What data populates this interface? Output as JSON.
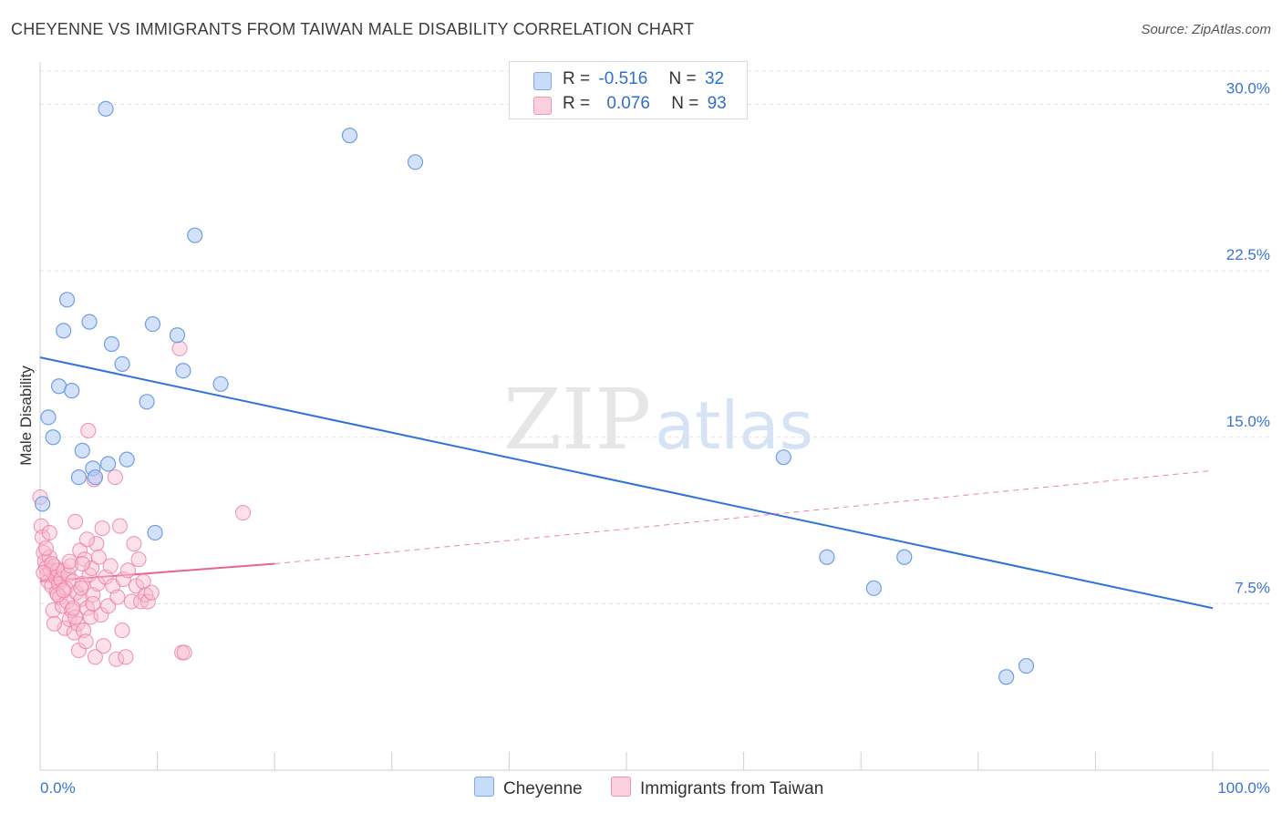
{
  "title": "CHEYENNE VS IMMIGRANTS FROM TAIWAN MALE DISABILITY CORRELATION CHART",
  "source": "Source: ZipAtlas.com",
  "watermark": {
    "zip": "ZIP",
    "atlas": "atlas"
  },
  "legend": {
    "rows": [
      {
        "r_label": "R =",
        "r_value": "-0.516",
        "n_label": "N =",
        "n_value": "32"
      },
      {
        "r_label": "R =",
        "r_value": "0.076",
        "n_label": "N =",
        "n_value": "93"
      }
    ]
  },
  "bottom_legend": {
    "cheyenne": "Cheyenne",
    "taiwan": "Immigrants from Taiwan"
  },
  "colors": {
    "blue_fill": "#aecbf5",
    "blue_stroke": "#6f9fe0",
    "blue_line": "#2f73d6",
    "pink_fill": "#f8bdd0",
    "pink_stroke": "#ec7fa3",
    "pink_line": "#e8658f",
    "axis_label": "#3a74d4",
    "grid": "#e2e2e2"
  },
  "chart_data": {
    "type": "scatter",
    "title": "CHEYENNE VS IMMIGRANTS FROM TAIWAN MALE DISABILITY CORRELATION CHART",
    "xlabel": "",
    "ylabel": "Male Disability",
    "xlim": [
      0,
      100
    ],
    "ylim": [
      0,
      31.5
    ],
    "x_tick_labels": [
      "0.0%",
      "100.0%"
    ],
    "y_ticks": [
      7.5,
      15.0,
      22.5,
      30.0
    ],
    "y_tick_labels": [
      "7.5%",
      "15.0%",
      "22.5%",
      "30.0%"
    ],
    "series": [
      {
        "name": "Cheyenne",
        "r": -0.516,
        "n": 32,
        "points": [
          [
            5.6,
            29.8
          ],
          [
            26.4,
            28.6
          ],
          [
            32.0,
            27.4
          ],
          [
            13.2,
            24.1
          ],
          [
            2.3,
            21.2
          ],
          [
            4.2,
            20.2
          ],
          [
            9.6,
            20.1
          ],
          [
            2.0,
            19.8
          ],
          [
            11.7,
            19.6
          ],
          [
            6.1,
            19.2
          ],
          [
            7.0,
            18.3
          ],
          [
            12.2,
            18.0
          ],
          [
            15.4,
            17.4
          ],
          [
            1.6,
            17.3
          ],
          [
            2.7,
            17.1
          ],
          [
            9.1,
            16.6
          ],
          [
            0.7,
            15.9
          ],
          [
            1.1,
            15.0
          ],
          [
            3.6,
            14.4
          ],
          [
            7.4,
            14.0
          ],
          [
            5.8,
            13.8
          ],
          [
            4.5,
            13.6
          ],
          [
            3.3,
            13.2
          ],
          [
            4.7,
            13.2
          ],
          [
            0.2,
            12.0
          ],
          [
            9.8,
            10.7
          ],
          [
            63.4,
            14.1
          ],
          [
            67.1,
            9.6
          ],
          [
            73.7,
            9.6
          ],
          [
            71.1,
            8.2
          ],
          [
            84.1,
            4.7
          ],
          [
            82.4,
            4.2
          ]
        ],
        "regression": {
          "x": [
            0,
            100
          ],
          "y": [
            18.6,
            7.3
          ]
        }
      },
      {
        "name": "Immigrants from Taiwan",
        "r": 0.076,
        "n": 93,
        "points": [
          [
            0.0,
            12.3
          ],
          [
            0.1,
            11.0
          ],
          [
            0.2,
            10.5
          ],
          [
            0.3,
            9.8
          ],
          [
            0.4,
            9.4
          ],
          [
            0.5,
            9.1
          ],
          [
            0.6,
            8.8
          ],
          [
            0.7,
            8.5
          ],
          [
            0.8,
            9.6
          ],
          [
            0.9,
            9.0
          ],
          [
            1.0,
            8.3
          ],
          [
            1.1,
            7.2
          ],
          [
            1.2,
            9.2
          ],
          [
            1.3,
            8.7
          ],
          [
            1.4,
            8.0
          ],
          [
            1.5,
            9.0
          ],
          [
            1.6,
            8.4
          ],
          [
            1.7,
            7.8
          ],
          [
            1.8,
            8.6
          ],
          [
            1.9,
            7.4
          ],
          [
            2.0,
            9.0
          ],
          [
            2.1,
            6.4
          ],
          [
            2.2,
            8.2
          ],
          [
            2.3,
            7.6
          ],
          [
            2.4,
            8.8
          ],
          [
            2.5,
            6.8
          ],
          [
            2.6,
            9.2
          ],
          [
            2.7,
            7.2
          ],
          [
            2.8,
            8.5
          ],
          [
            2.9,
            6.2
          ],
          [
            3.0,
            11.2
          ],
          [
            3.1,
            8.0
          ],
          [
            3.2,
            6.6
          ],
          [
            3.3,
            5.4
          ],
          [
            3.4,
            9.9
          ],
          [
            3.5,
            7.7
          ],
          [
            3.6,
            8.4
          ],
          [
            3.7,
            6.3
          ],
          [
            3.8,
            9.5
          ],
          [
            3.9,
            5.8
          ],
          [
            4.0,
            7.3
          ],
          [
            4.1,
            15.3
          ],
          [
            4.2,
            8.8
          ],
          [
            4.3,
            6.9
          ],
          [
            4.4,
            9.1
          ],
          [
            4.5,
            7.9
          ],
          [
            4.6,
            13.1
          ],
          [
            4.7,
            5.1
          ],
          [
            4.8,
            10.2
          ],
          [
            4.9,
            8.4
          ],
          [
            5.0,
            9.6
          ],
          [
            5.2,
            7.0
          ],
          [
            5.3,
            10.9
          ],
          [
            5.4,
            5.6
          ],
          [
            5.6,
            8.7
          ],
          [
            5.8,
            7.4
          ],
          [
            6.0,
            9.2
          ],
          [
            6.2,
            8.3
          ],
          [
            6.4,
            13.2
          ],
          [
            6.5,
            5.0
          ],
          [
            6.6,
            7.8
          ],
          [
            6.8,
            11.0
          ],
          [
            7.0,
            6.3
          ],
          [
            7.1,
            8.6
          ],
          [
            7.3,
            5.1
          ],
          [
            7.5,
            9.0
          ],
          [
            7.8,
            7.6
          ],
          [
            8.0,
            10.2
          ],
          [
            8.2,
            8.3
          ],
          [
            8.4,
            9.5
          ],
          [
            8.6,
            7.6
          ],
          [
            8.8,
            8.5
          ],
          [
            9.0,
            7.9
          ],
          [
            9.2,
            7.6
          ],
          [
            9.5,
            8.0
          ],
          [
            11.9,
            19.0
          ],
          [
            12.1,
            5.3
          ],
          [
            12.3,
            5.3
          ],
          [
            17.3,
            11.6
          ],
          [
            0.5,
            10.0
          ],
          [
            1.0,
            9.3
          ],
          [
            1.5,
            7.9
          ],
          [
            2.0,
            8.1
          ],
          [
            2.5,
            9.4
          ],
          [
            3.0,
            6.9
          ],
          [
            3.5,
            8.2
          ],
          [
            4.0,
            10.4
          ],
          [
            4.5,
            7.5
          ],
          [
            0.3,
            8.9
          ],
          [
            0.8,
            10.7
          ],
          [
            1.2,
            6.6
          ],
          [
            2.8,
            7.3
          ],
          [
            3.6,
            9.3
          ]
        ],
        "regression_solid": {
          "x": [
            0,
            20
          ],
          "y": [
            8.5,
            9.3
          ]
        },
        "regression_dashed": {
          "x": [
            20,
            100
          ],
          "y": [
            9.3,
            13.5
          ]
        }
      }
    ]
  }
}
